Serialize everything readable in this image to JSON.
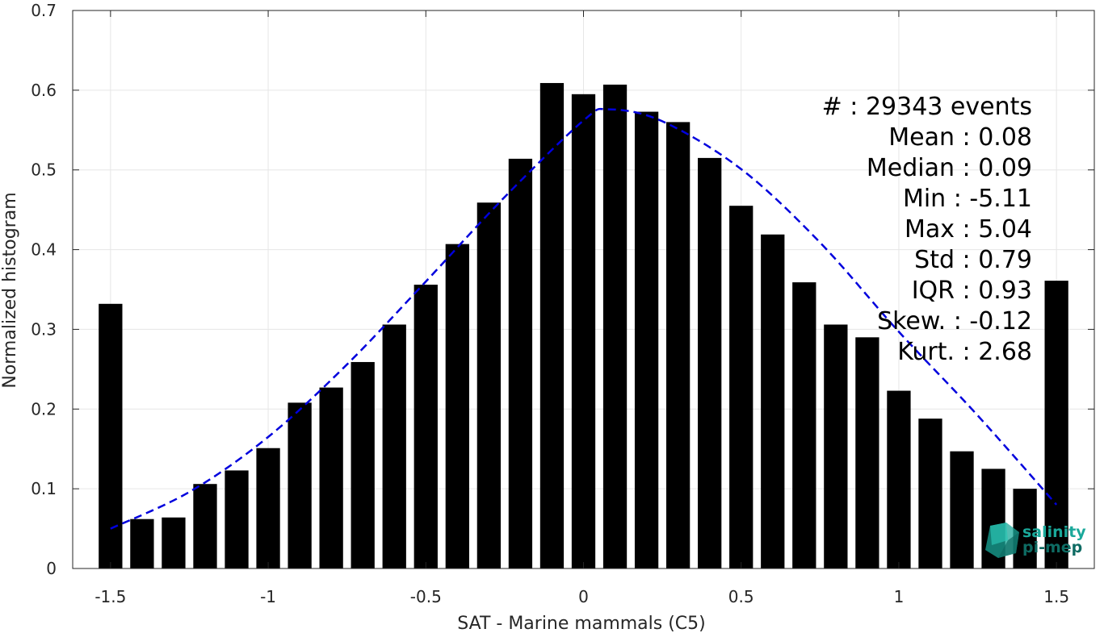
{
  "chart_data": {
    "type": "bar",
    "xlabel": "SAT - Marine mammals (C5)",
    "ylabel": "Normalized histogram",
    "xlim": [
      -1.62,
      1.62
    ],
    "ylim": [
      0,
      0.7
    ],
    "xticks": [
      -1.5,
      -1,
      -0.5,
      0,
      0.5,
      1,
      1.5
    ],
    "xtick_labels": [
      "-1.5",
      "-1",
      "-0.5",
      "0",
      "0.5",
      "1",
      "1.5"
    ],
    "yticks": [
      0,
      0.1,
      0.2,
      0.3,
      0.4,
      0.5,
      0.6,
      0.7
    ],
    "ytick_labels": [
      "0",
      "0.1",
      "0.2",
      "0.3",
      "0.4",
      "0.5",
      "0.6",
      "0.7"
    ],
    "grid": true,
    "bar_width": 0.075,
    "bar_color": "#000000",
    "fit_color": "#0000dd",
    "x": [
      -1.5,
      -1.4,
      -1.3,
      -1.2,
      -1.1,
      -1.0,
      -0.9,
      -0.8,
      -0.7,
      -0.6,
      -0.5,
      -0.4,
      -0.3,
      -0.2,
      -0.1,
      0.0,
      0.1,
      0.2,
      0.3,
      0.4,
      0.5,
      0.6,
      0.7,
      0.8,
      0.9,
      1.0,
      1.1,
      1.2,
      1.3,
      1.4,
      1.5
    ],
    "values": [
      0.332,
      0.062,
      0.064,
      0.106,
      0.123,
      0.151,
      0.208,
      0.227,
      0.259,
      0.306,
      0.356,
      0.407,
      0.459,
      0.514,
      0.609,
      0.595,
      0.607,
      0.573,
      0.56,
      0.515,
      0.455,
      0.419,
      0.359,
      0.306,
      0.29,
      0.223,
      0.188,
      0.147,
      0.125,
      0.1,
      0.361
    ],
    "fit_curve": {
      "style": "dashed",
      "x": [
        -1.5,
        -1.25,
        -1.0,
        -0.75,
        -0.5,
        -0.25,
        0.0,
        0.08,
        0.25,
        0.5,
        0.75,
        1.0,
        1.25,
        1.5
      ],
      "y": [
        0.05,
        0.096,
        0.165,
        0.256,
        0.36,
        0.466,
        0.562,
        0.576,
        0.561,
        0.501,
        0.409,
        0.297,
        0.192,
        0.08
      ]
    }
  },
  "stats_box": [
    {
      "label": "#  ",
      "value": "29343 events"
    },
    {
      "label": "Mean",
      "value": "0.08"
    },
    {
      "label": "Median",
      "value": "0.09"
    },
    {
      "label": "Min",
      "value": "-5.11"
    },
    {
      "label": "Max",
      "value": "5.04"
    },
    {
      "label": "Std",
      "value": "0.79"
    },
    {
      "label": "IQR",
      "value": "0.93"
    },
    {
      "label": "Skew.",
      "value": "-0.12"
    },
    {
      "label": "Kurt.",
      "value": "2.68"
    }
  ],
  "logo": {
    "line1": "salinity",
    "line2": "pi-mep",
    "color1": "#1aa89a",
    "color2": "#0e6b63"
  }
}
